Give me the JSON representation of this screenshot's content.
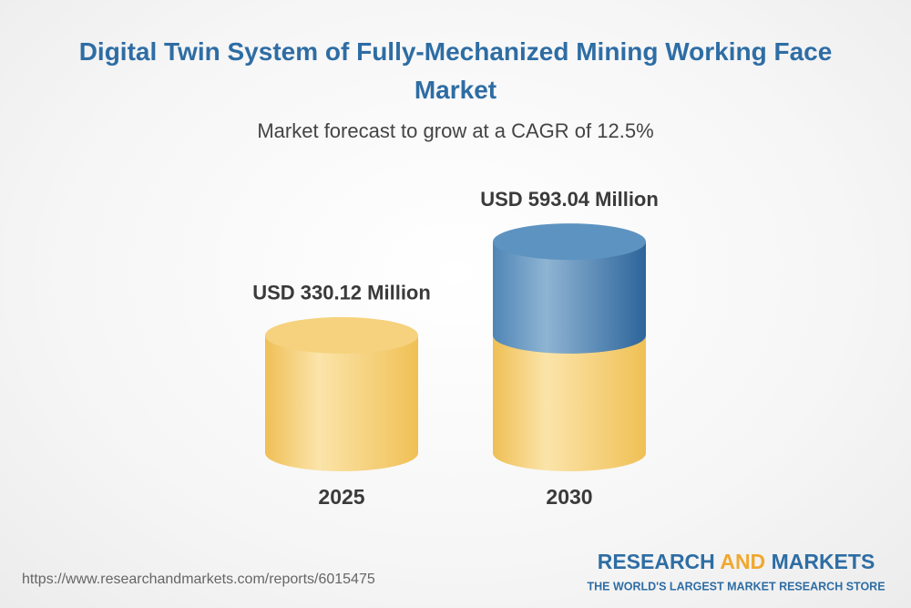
{
  "chart_data": {
    "type": "cylinder",
    "title": "Digital Twin System of Fully-Mechanized Mining Working Face Market",
    "subtitle": "Market forecast to grow at a CAGR of 12.5%",
    "categories": [
      "2025",
      "2030"
    ],
    "values": [
      330.12,
      593.04
    ],
    "value_labels": [
      "USD 330.12 Million",
      "USD 593.04 Million"
    ]
  },
  "footer": {
    "url": "https://www.researchandmarkets.com/reports/6015475",
    "logo": [
      "RESEARCH",
      "AND",
      "MARKETS"
    ],
    "tagline": "THE WORLD'S LARGEST MARKET RESEARCH STORE"
  }
}
